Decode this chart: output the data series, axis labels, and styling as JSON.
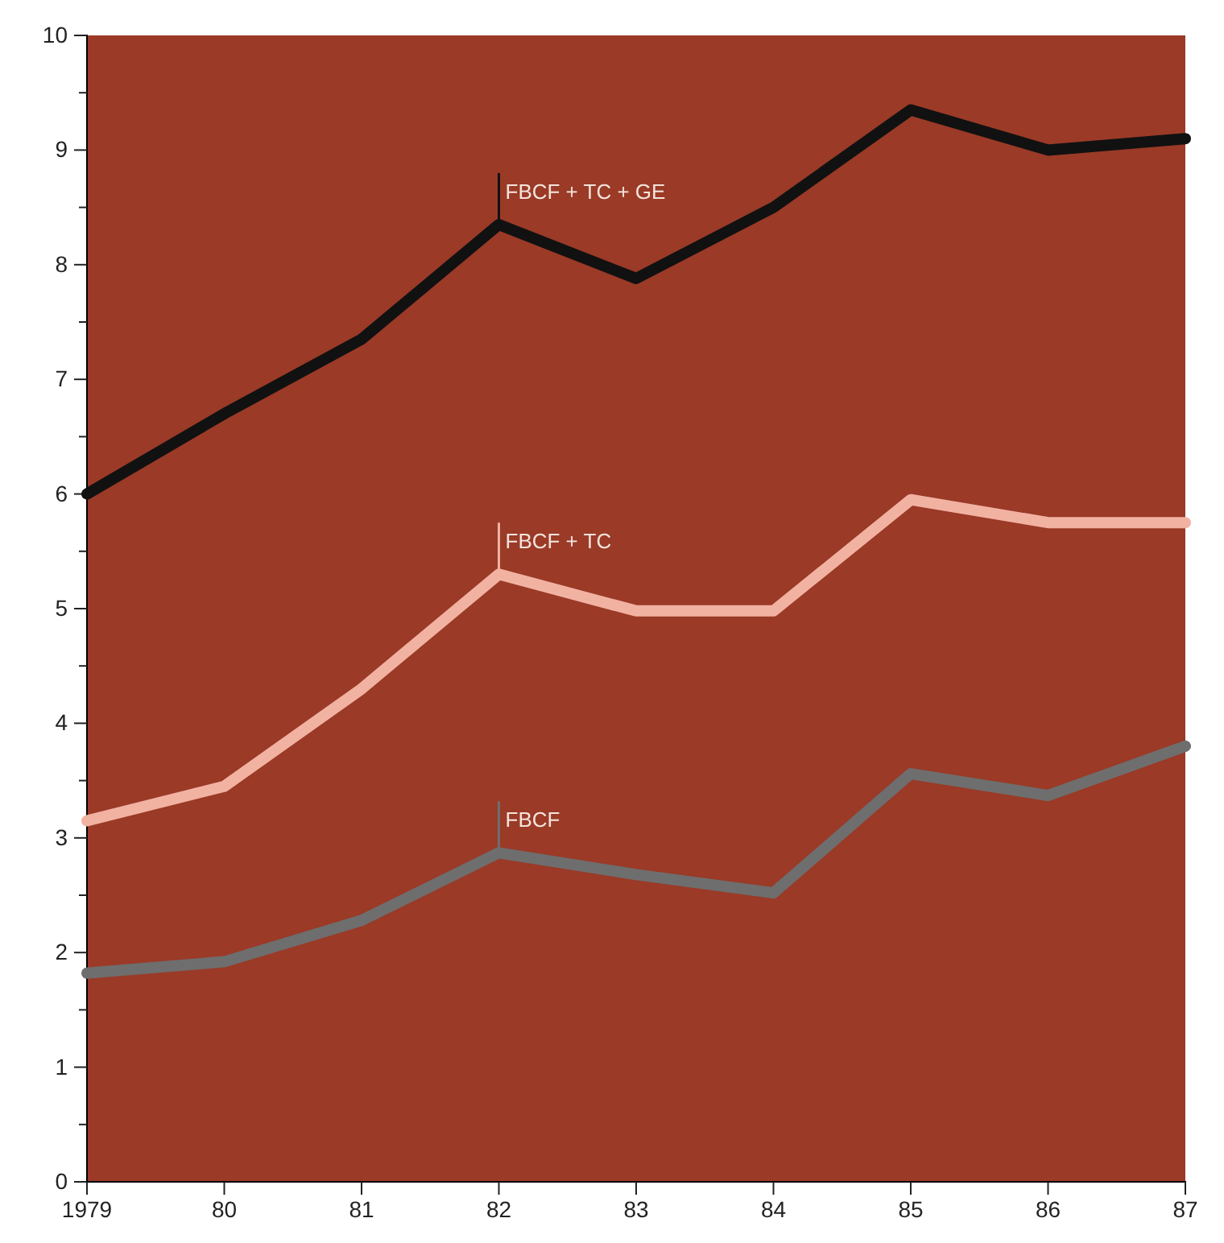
{
  "chart_data": {
    "type": "line",
    "x": [
      1979,
      1980,
      1981,
      1982,
      1983,
      1984,
      1985,
      1986,
      1987
    ],
    "series": [
      {
        "name": "FBCF + TC + GE",
        "color": "#111111",
        "values": [
          6.0,
          6.7,
          7.35,
          8.35,
          7.88,
          8.5,
          9.35,
          9.0,
          9.1
        ]
      },
      {
        "name": "FBCF + TC",
        "color": "#f2b2a2",
        "values": [
          3.15,
          3.45,
          4.3,
          5.3,
          4.98,
          4.98,
          5.95,
          5.75,
          5.75
        ]
      },
      {
        "name": "FBCF",
        "color": "#6e6e6e",
        "values": [
          1.82,
          1.92,
          2.28,
          2.87,
          2.68,
          2.52,
          3.56,
          3.37,
          3.8
        ]
      }
    ],
    "xlim": [
      1979,
      1987
    ],
    "xticks": [
      {
        "value": 1979,
        "label": "1979"
      },
      {
        "value": 1980,
        "label": "80"
      },
      {
        "value": 1981,
        "label": "81"
      },
      {
        "value": 1982,
        "label": "82"
      },
      {
        "value": 1983,
        "label": "83"
      },
      {
        "value": 1984,
        "label": "84"
      },
      {
        "value": 1985,
        "label": "85"
      },
      {
        "value": 1986,
        "label": "86"
      },
      {
        "value": 1987,
        "label": "87"
      }
    ],
    "ylim": [
      0,
      10
    ],
    "yticks": [
      0,
      {
        "value": 0.5,
        "label": null
      },
      1,
      {
        "value": 1.5,
        "label": null
      },
      2,
      {
        "value": 2.5,
        "label": null
      },
      3,
      {
        "value": 3.5,
        "label": null
      },
      4,
      {
        "value": 4.5,
        "label": null
      },
      5,
      {
        "value": 5.5,
        "label": null
      },
      6,
      {
        "value": 6.5,
        "label": null
      },
      7,
      {
        "value": 7.5,
        "label": null
      },
      8,
      {
        "value": 8.5,
        "label": null
      },
      9,
      {
        "value": 9.5,
        "label": null
      },
      10
    ],
    "grid": false,
    "legend": false,
    "marker": "none",
    "line_style": "solid"
  }
}
